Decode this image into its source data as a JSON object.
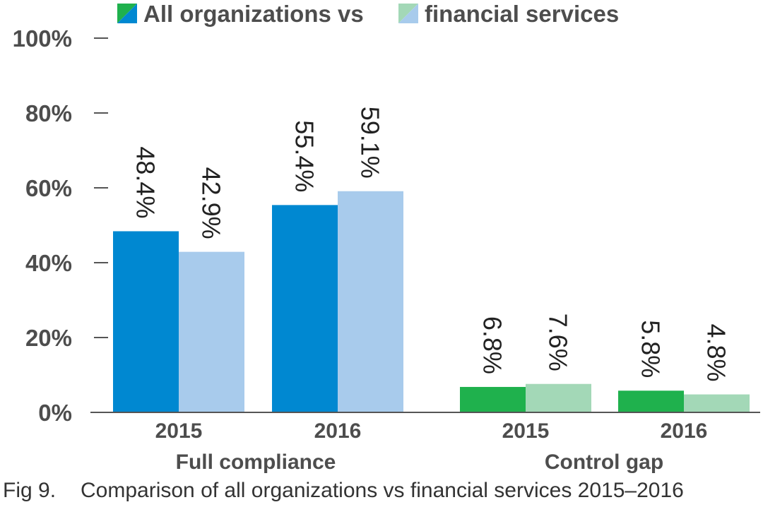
{
  "legend": {
    "primary_label": "All organizations vs",
    "secondary_label": "financial services"
  },
  "caption": {
    "number": "Fig 9.",
    "text": "Comparison of all organizations vs financial services 2015–2016"
  },
  "colors": {
    "full_compliance_all": "#0088d1",
    "full_compliance_financial": "#a8cbec",
    "control_gap_all": "#1fb14d",
    "control_gap_financial": "#a3d8b7",
    "axis": "#555555"
  },
  "chart_data": {
    "type": "bar",
    "ylim": [
      0,
      100
    ],
    "y_ticks": [
      "0%",
      "20%",
      "40%",
      "60%",
      "80%",
      "100%"
    ],
    "y_tick_values": [
      0,
      20,
      40,
      60,
      80,
      100
    ],
    "grid": false,
    "legend_position": "top",
    "groups": [
      {
        "name": "Full compliance",
        "categories": [
          {
            "label": "2015",
            "all": 48.4,
            "financial": 42.9,
            "all_label": "48.4%",
            "financial_label": "42.9%"
          },
          {
            "label": "2016",
            "all": 55.4,
            "financial": 59.1,
            "all_label": "55.4%",
            "financial_label": "59.1%"
          }
        ]
      },
      {
        "name": "Control gap",
        "categories": [
          {
            "label": "2015",
            "all": 6.8,
            "financial": 7.6,
            "all_label": "6.8%",
            "financial_label": "7.6%"
          },
          {
            "label": "2016",
            "all": 5.8,
            "financial": 4.8,
            "all_label": "5.8%",
            "financial_label": "4.8%"
          }
        ]
      }
    ]
  }
}
